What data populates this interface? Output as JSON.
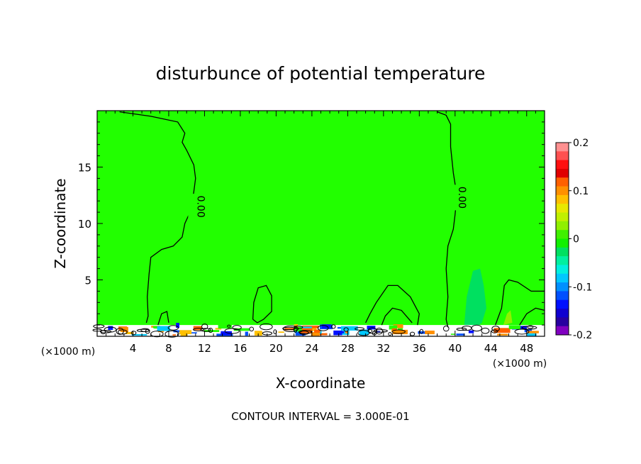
{
  "chart_data": {
    "type": "contour",
    "title": "disturbunce of potential temperature",
    "xlabel": "X-coordinate",
    "ylabel": "Z-coordinate",
    "x_unit": "(×1000 m)",
    "x_unit_right": "(×1000 m)",
    "footer": "CONTOUR INTERVAL = 3.000E-01",
    "xlim": [
      0,
      50
    ],
    "ylim": [
      0,
      20
    ],
    "x_ticks": [
      4,
      8,
      12,
      16,
      20,
      24,
      28,
      32,
      36,
      40,
      44,
      48
    ],
    "x_tick_labels": [
      "4",
      "8",
      "12",
      "16",
      "20",
      "24",
      "28",
      "32",
      "36",
      "40",
      "44",
      "48"
    ],
    "y_ticks": [
      5,
      10,
      15
    ],
    "y_tick_labels": [
      "5",
      "10",
      "15"
    ],
    "contour_labels": [
      {
        "text": "0.00",
        "x": 10.8,
        "z": 11.5
      },
      {
        "text": "0.00",
        "x": 40.0,
        "z": 12.3
      }
    ],
    "contours": [
      {
        "value": 0.0,
        "points": [
          [
            2.5,
            19.9
          ],
          [
            6,
            19.5
          ],
          [
            9,
            19.0
          ],
          [
            9.8,
            18.0
          ],
          [
            9.5,
            17.2
          ],
          [
            10.0,
            16.5
          ],
          [
            10.8,
            15.2
          ],
          [
            11.0,
            14.0
          ],
          [
            10.8,
            12.8
          ],
          [
            10.5,
            11.2
          ],
          [
            9.8,
            10.0
          ],
          [
            9.5,
            8.8
          ],
          [
            8.5,
            8.0
          ],
          [
            7.2,
            7.7
          ],
          [
            6.0,
            7.0
          ],
          [
            5.8,
            5.5
          ],
          [
            5.6,
            3.5
          ],
          [
            5.7,
            1.8
          ],
          [
            5.5,
            1.2
          ]
        ]
      },
      {
        "value": 0.0,
        "points": [
          [
            38.0,
            19.9
          ],
          [
            39.0,
            19.6
          ],
          [
            39.5,
            18.8
          ],
          [
            39.5,
            16.8
          ],
          [
            39.8,
            14.5
          ],
          [
            40.2,
            12.5
          ],
          [
            40.0,
            10.8
          ],
          [
            39.8,
            9.5
          ],
          [
            39.2,
            8.0
          ],
          [
            39.0,
            6.0
          ],
          [
            39.2,
            3.5
          ],
          [
            39.0,
            1.5
          ],
          [
            39.2,
            0.8
          ]
        ]
      },
      {
        "value": 0.0,
        "points": [
          [
            17.4,
            1.5
          ],
          [
            17.5,
            3.0
          ],
          [
            18.0,
            4.3
          ],
          [
            18.9,
            4.5
          ],
          [
            19.5,
            3.6
          ],
          [
            19.5,
            2.2
          ],
          [
            18.6,
            1.5
          ],
          [
            17.9,
            1.2
          ],
          [
            17.4,
            1.5
          ]
        ]
      },
      {
        "value": 0.0,
        "points": [
          [
            30.0,
            1.2
          ],
          [
            30.5,
            2.0
          ],
          [
            31.2,
            3.0
          ],
          [
            32.5,
            4.5
          ],
          [
            33.6,
            4.5
          ],
          [
            35.0,
            3.5
          ],
          [
            36.0,
            2.0
          ],
          [
            35.8,
            1.0
          ]
        ]
      },
      {
        "value": 0.0,
        "points": [
          [
            31.8,
            1.0
          ],
          [
            32.2,
            1.8
          ],
          [
            33.0,
            2.5
          ],
          [
            34.0,
            2.3
          ],
          [
            35.2,
            1.2
          ]
        ]
      },
      {
        "value": 0.0,
        "points": [
          [
            6.8,
            1.0
          ],
          [
            7.2,
            2.0
          ],
          [
            7.8,
            2.2
          ],
          [
            8.0,
            1.2
          ]
        ]
      },
      {
        "value": 0.0,
        "points": [
          [
            44.5,
            1.0
          ],
          [
            45.2,
            2.5
          ],
          [
            45.5,
            4.5
          ],
          [
            46.0,
            5.0
          ],
          [
            47.0,
            4.8
          ],
          [
            48.5,
            4.0
          ],
          [
            50,
            4.0
          ]
        ]
      },
      {
        "value": 0.0,
        "points": [
          [
            47.2,
            1.0
          ],
          [
            48.0,
            2.0
          ],
          [
            49.0,
            2.5
          ],
          [
            50,
            2.3
          ]
        ]
      }
    ],
    "shaded_regions": [
      {
        "level": -0.02,
        "points": [
          [
            41.0,
            0.8
          ],
          [
            41.3,
            3.5
          ],
          [
            42.0,
            5.8
          ],
          [
            42.8,
            6.0
          ],
          [
            43.2,
            4.5
          ],
          [
            43.5,
            2.5
          ],
          [
            43.0,
            1.2
          ],
          [
            42.0,
            0.6
          ]
        ]
      },
      {
        "level": 0.03,
        "points": [
          [
            45.4,
            1.0
          ],
          [
            45.8,
            2.0
          ],
          [
            46.2,
            2.3
          ],
          [
            46.4,
            1.2
          ]
        ]
      }
    ],
    "colorbar": {
      "ticks": [
        0.2,
        0.1,
        0,
        -0.1,
        -0.2
      ],
      "tick_labels": [
        "0.2",
        "0.1",
        "0",
        "-0.1",
        "-0.2"
      ],
      "colors": [
        "#ff9090",
        "#ff5050",
        "#ff1010",
        "#e00000",
        "#ff6000",
        "#ff9000",
        "#ffc000",
        "#e8e800",
        "#c0f000",
        "#90f000",
        "#40f000",
        "#10f000",
        "#00e060",
        "#00f0a0",
        "#00f0e0",
        "#00c8ff",
        "#0090ff",
        "#0050ff",
        "#0010ff",
        "#1000d0",
        "#2800a0",
        "#8000c0"
      ],
      "min": -0.2,
      "max": 0.2
    },
    "background_color": "#22ff00"
  }
}
